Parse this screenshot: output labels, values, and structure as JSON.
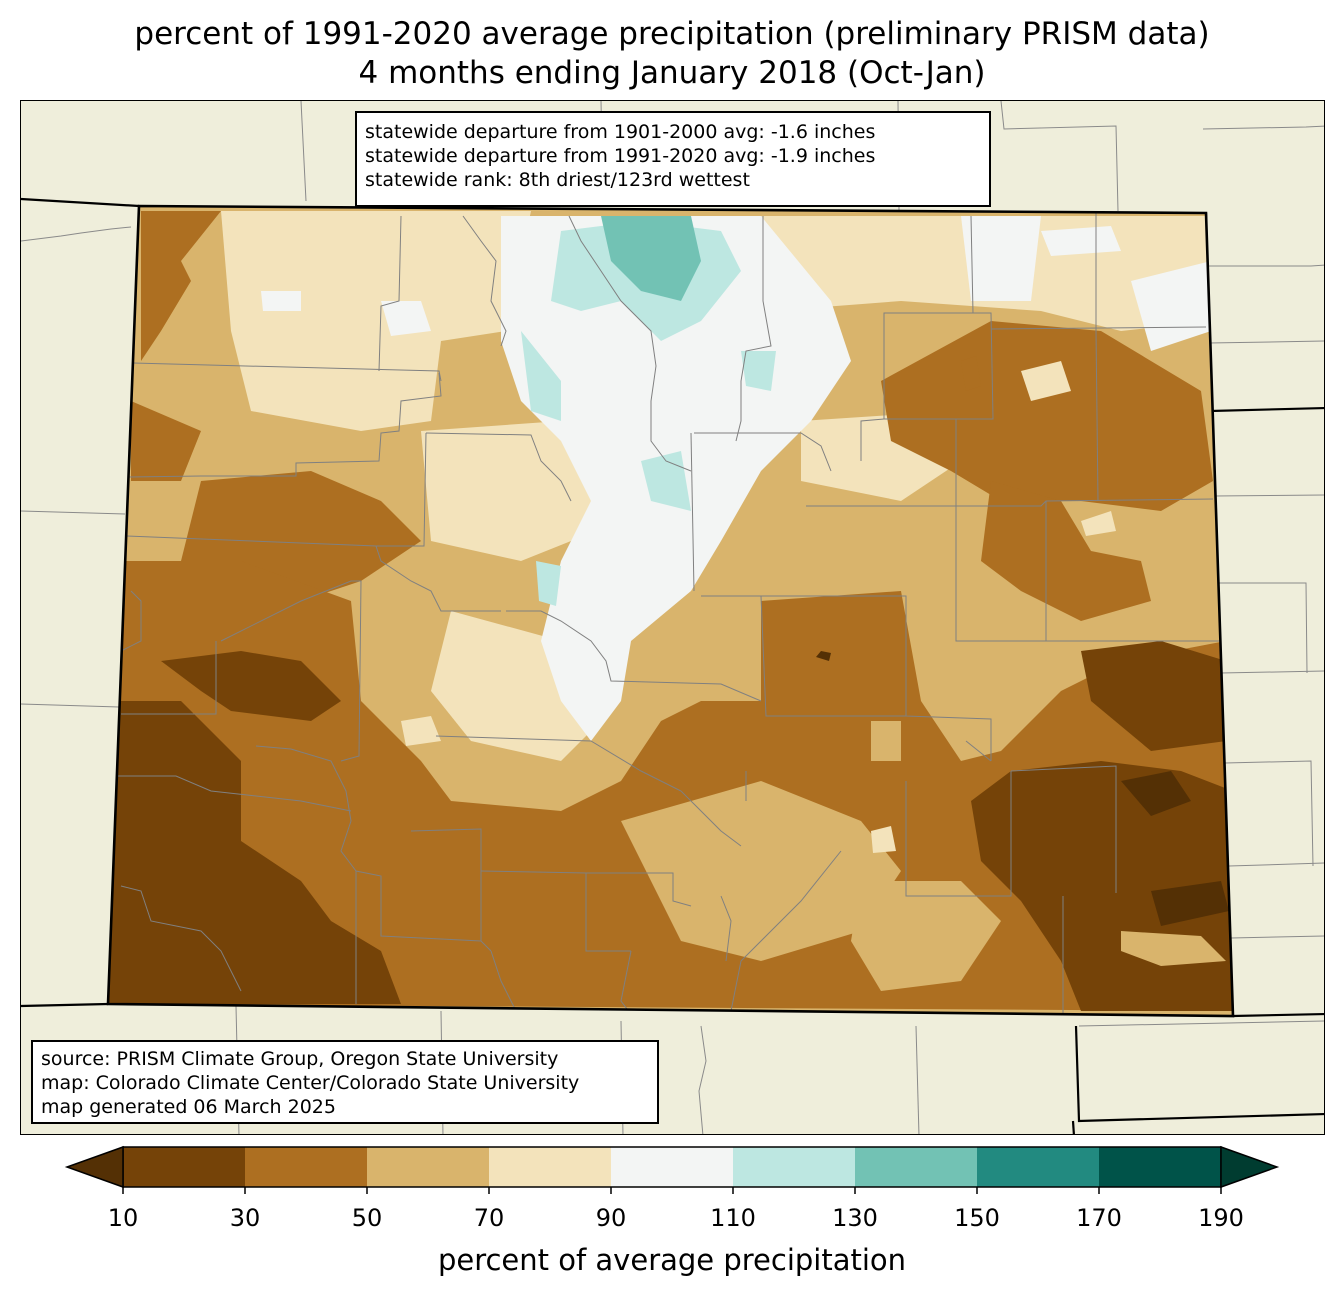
{
  "title": {
    "line1": "percent of 1991-2020 average precipitation (preliminary PRISM data)",
    "line2": "4 months ending January 2018 (Oct-Jan)"
  },
  "stats": {
    "line1": "statewide departure from 1901-2000 avg: -1.6 inches",
    "line2": "statewide departure from 1991-2020 avg: -1.9 inches",
    "line3": "statewide rank: 8th driest/123rd wettest"
  },
  "source": {
    "line1": "source: PRISM Climate Group, Oregon State University",
    "line2": "map: Colorado Climate Center/Colorado State University",
    "line3": "map generated 06 March 2025"
  },
  "colorbar": {
    "label": "percent of average precipitation",
    "ticks": [
      "10",
      "30",
      "50",
      "70",
      "90",
      "110",
      "130",
      "150",
      "170",
      "190"
    ],
    "bins": [
      {
        "range": "10-30",
        "color": "#754308"
      },
      {
        "range": "30-50",
        "color": "#ad6f21"
      },
      {
        "range": "50-70",
        "color": "#d9b46c"
      },
      {
        "range": "70-90",
        "color": "#f3e3bb"
      },
      {
        "range": "90-110",
        "color": "#f3f5f4"
      },
      {
        "range": "110-130",
        "color": "#bde7e1"
      },
      {
        "range": "130-150",
        "color": "#72c2b4"
      },
      {
        "range": "150-170",
        "color": "#228a80"
      },
      {
        "range": "170-190",
        "color": "#005349"
      }
    ],
    "under_color": "#543005",
    "over_color": "#003c30"
  },
  "map": {
    "background_color": "#efeedb",
    "state_line_color": "#000000",
    "county_line_color": "#808080"
  }
}
